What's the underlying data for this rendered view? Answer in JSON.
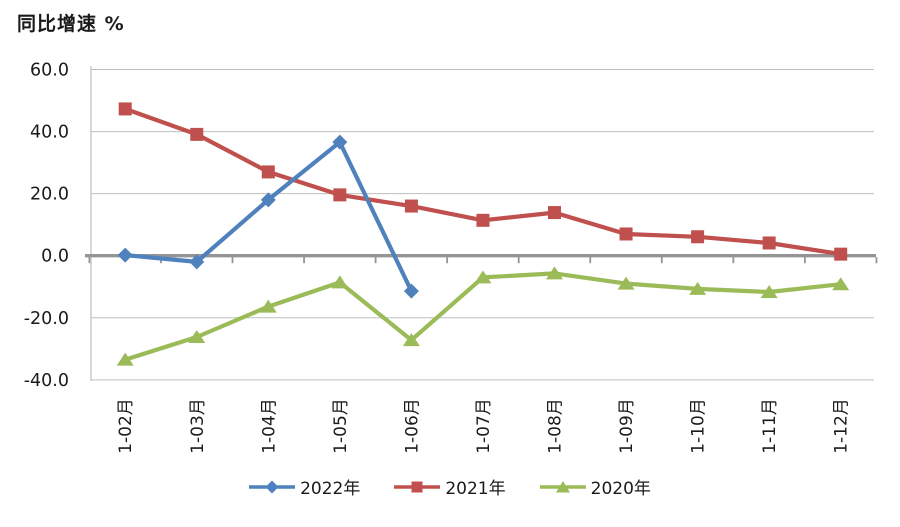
{
  "title": "同比增速 %",
  "colors": {
    "series_2022": "#4F81BD",
    "series_2021": "#C0504D",
    "series_2020": "#9BBB59",
    "gridline": "#BFBFBF",
    "zero_axis": "#949494",
    "text": "#1a1a1a"
  },
  "chart_data": {
    "type": "line",
    "title": "同比增速 %",
    "ylabel": "同比增速 %",
    "xlabel": "",
    "grid": true,
    "legend_position": "bottom",
    "categories": [
      "1-02月",
      "1-03月",
      "1-04月",
      "1-05月",
      "1-06月",
      "1-07月",
      "1-08月",
      "1-09月",
      "1-10月",
      "1-11月",
      "1-12月"
    ],
    "series": [
      {
        "name": "2022年",
        "marker": "diamond",
        "color": "#4F81BD",
        "values": [
          0.2,
          -2.0,
          18.0,
          36.6,
          -11.4,
          null,
          null,
          null,
          null,
          null,
          null
        ]
      },
      {
        "name": "2021年",
        "marker": "square",
        "color": "#C0504D",
        "values": [
          47.3,
          39.1,
          27.0,
          19.6,
          16.0,
          11.4,
          13.9,
          7.0,
          6.1,
          4.1,
          0.5
        ]
      },
      {
        "name": "2020年",
        "marker": "triangle",
        "color": "#9BBB59",
        "values": [
          -33.5,
          -26.2,
          -16.4,
          -8.6,
          -27.2,
          -7.0,
          -5.7,
          -9.0,
          -10.7,
          -11.7,
          -9.2
        ]
      }
    ],
    "y_axis": {
      "min": -40,
      "max": 60,
      "step": 20,
      "tick_values": [
        60,
        40,
        20,
        0,
        -20,
        -40
      ],
      "tick_labels": [
        "60.0",
        "40.0",
        "20.0",
        "0.0",
        "-20.0",
        "-40.0"
      ]
    }
  }
}
